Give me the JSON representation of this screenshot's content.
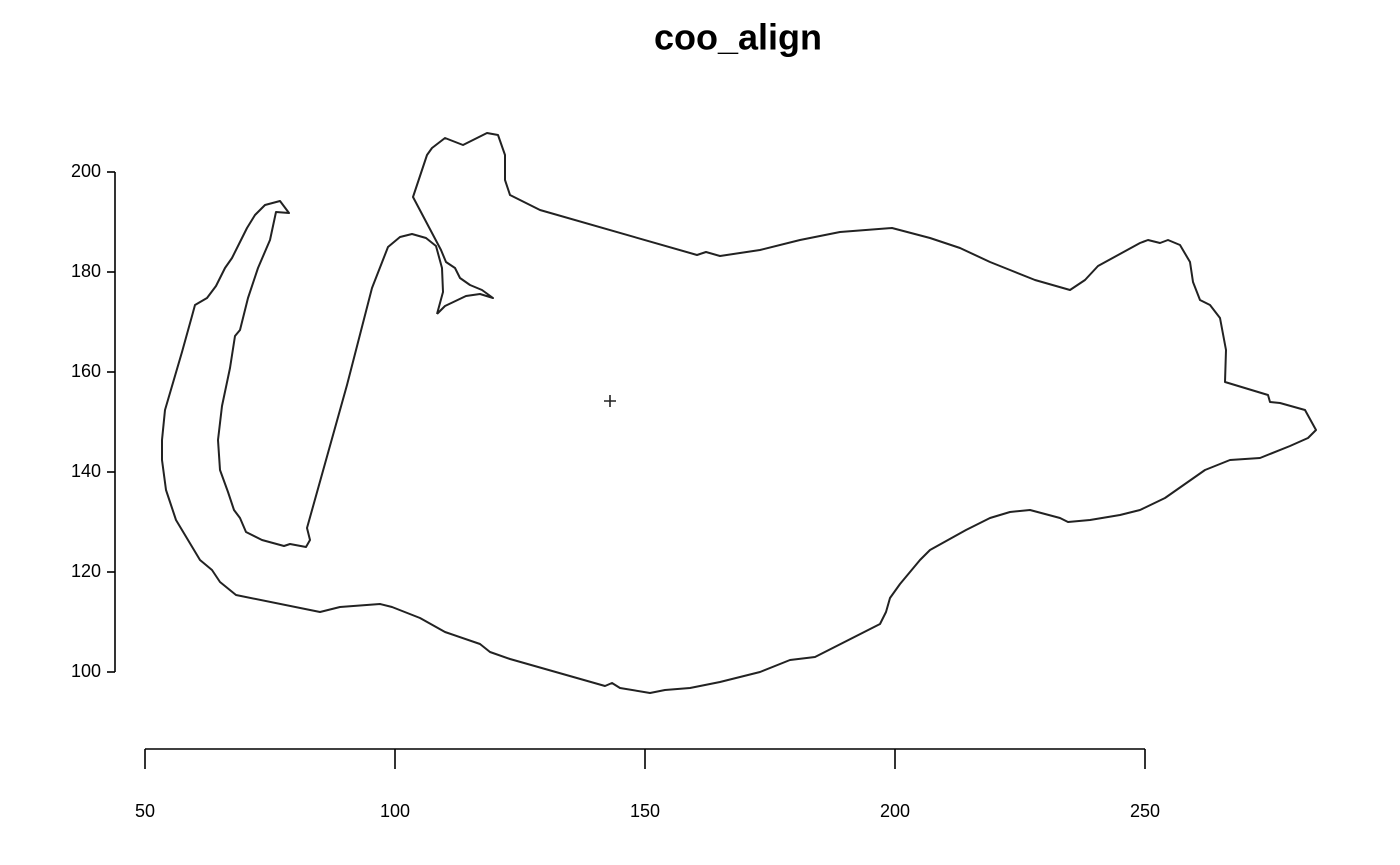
{
  "chart_data": {
    "type": "line",
    "title": "coo_align",
    "outline": {
      "x": [
        108.4,
        109.6,
        109.4,
        108.2,
        106.2,
        103.4,
        101,
        98.6,
        95.4,
        90.4,
        82.4,
        83,
        82.2,
        79,
        77.8,
        73.4,
        70.2,
        69,
        67.8,
        66.6,
        65,
        64.6,
        65.4,
        67,
        68,
        69,
        70.6,
        72.6,
        75,
        76.2,
        78.8,
        77,
        74,
        72,
        70.4,
        69,
        67.4,
        66,
        64.2,
        62.4,
        60,
        59.4,
        57.4,
        54,
        53.4,
        53.4,
        54.2,
        55,
        56.2,
        61,
        63.4,
        65,
        68.2,
        85,
        89,
        97,
        99.4,
        105,
        110,
        117,
        119,
        123,
        142,
        143.4,
        145,
        151,
        154,
        159,
        165,
        173,
        179,
        184,
        197,
        198.2,
        199,
        201,
        203,
        205,
        207,
        210.6,
        214.2,
        219,
        223,
        227,
        233,
        234.6,
        239,
        245,
        249,
        254,
        258,
        262,
        267,
        273,
        279,
        282.6,
        284.2,
        282,
        277,
        275,
        274.6,
        266,
        266.2,
        265,
        263,
        261,
        259.6,
        259,
        257,
        254.6,
        253,
        250.6,
        249,
        240.6,
        238,
        235,
        228,
        223,
        219,
        213,
        207,
        199.4,
        189,
        181,
        173,
        165,
        162.2,
        160.4,
        129,
        123,
        122,
        122,
        120.6,
        118.4,
        113.6,
        110,
        107.4,
        106.4,
        103.6,
        109.2,
        110.2,
        112,
        113,
        115,
        117.4,
        119.6,
        117,
        114.2,
        110,
        108.4
      ],
      "y": [
        171.6,
        176,
        180.8,
        185.2,
        186.8,
        187.6,
        187,
        185,
        176.8,
        157.4,
        128.8,
        126.4,
        125,
        125.6,
        125.2,
        126.4,
        128,
        130.8,
        132.4,
        136,
        140.4,
        146.4,
        153.2,
        160.8,
        167.2,
        168.4,
        174.8,
        180.8,
        186.4,
        192,
        191.8,
        194.2,
        193.4,
        191.4,
        188.8,
        186,
        182.8,
        180.8,
        177.2,
        174.8,
        173.4,
        171.2,
        164,
        152.4,
        146.4,
        142.4,
        136.4,
        134,
        130.4,
        122.4,
        120.4,
        118,
        115.4,
        112,
        113,
        113.6,
        113,
        110.8,
        108,
        105.6,
        104,
        102.6,
        97.2,
        97.8,
        96.8,
        95.8,
        96.4,
        96.8,
        98,
        100,
        102.4,
        103,
        109.6,
        112,
        114.8,
        117.6,
        120,
        122.4,
        124.4,
        126.4,
        128.4,
        130.8,
        132,
        132.4,
        130.8,
        130,
        130.4,
        131.4,
        132.4,
        134.8,
        137.6,
        140.4,
        142.4,
        142.8,
        145.2,
        146.8,
        148.4,
        152.4,
        153.8,
        154,
        155.4,
        158,
        164.4,
        170.8,
        173.4,
        174.4,
        178,
        182,
        185.4,
        186.4,
        185.8,
        186.4,
        185.8,
        181.2,
        178.4,
        176.4,
        178.4,
        180.4,
        182,
        184.8,
        186.8,
        188.8,
        188,
        186.4,
        184.4,
        183.2,
        184,
        183.4,
        192.4,
        195.4,
        198.4,
        203.4,
        207.4,
        207.8,
        205.4,
        206.8,
        204.8,
        203.4,
        195,
        184.4,
        182,
        180.8,
        178.8,
        177.4,
        176.4,
        174.8,
        175.6,
        175.2,
        173.2,
        171.6
      ]
    },
    "centroid": {
      "x": 143,
      "y": 154.2
    },
    "color": "#222222",
    "xlim": [
      40,
      300
    ],
    "ylim": [
      85,
      215
    ],
    "xticks": [
      50,
      100,
      150,
      200,
      250
    ],
    "yticks": [
      100,
      120,
      140,
      160,
      180,
      200
    ],
    "grid": false
  }
}
